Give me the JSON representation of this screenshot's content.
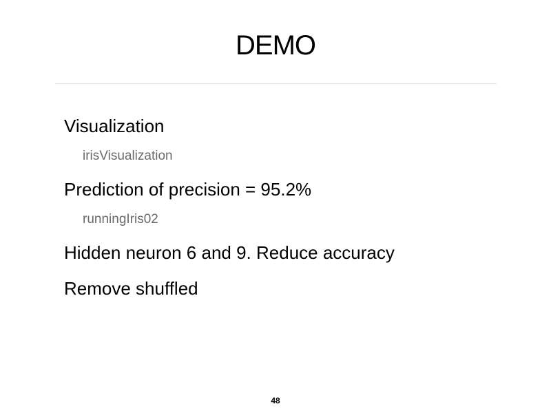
{
  "slide": {
    "title": "DEMO",
    "bullets": [
      {
        "text": "Visualization",
        "sub": "irisVisualization"
      },
      {
        "text": "Prediction of precision = 95.2%",
        "sub": "runningIris02"
      },
      {
        "text": "Hidden neuron 6 and 9. Reduce accuracy"
      },
      {
        "text": "Remove shuffled"
      }
    ],
    "page_number": "48"
  }
}
